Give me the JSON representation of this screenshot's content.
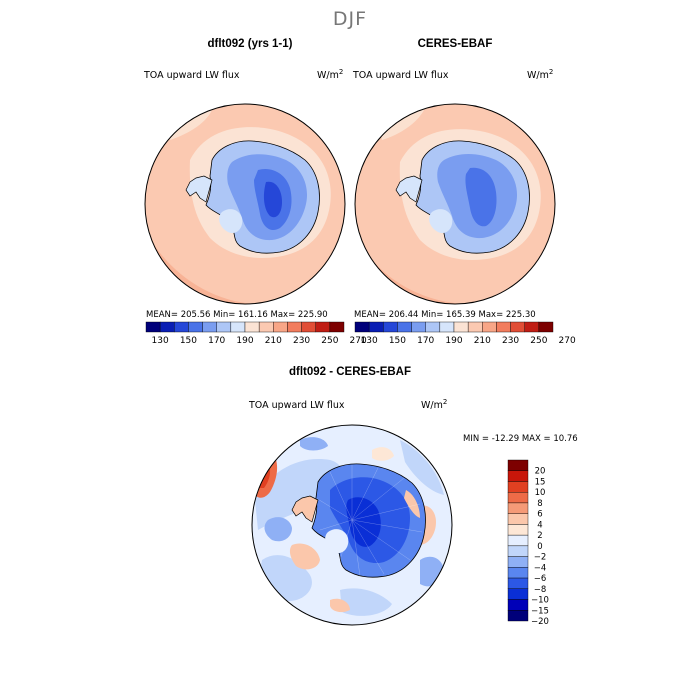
{
  "figure": {
    "season": "DJF"
  },
  "colors": {
    "abs_levels": [
      "#00007a",
      "#0a1eb4",
      "#2547d8",
      "#4a73e8",
      "#7a9df0",
      "#adc6f6",
      "#d6e5fb",
      "#fbe3d4",
      "#fbc9b1",
      "#f8a687",
      "#f27d5e",
      "#e14e36",
      "#c01d14",
      "#7d0000"
    ],
    "diff_levels": [
      "#00007a",
      "#0000b8",
      "#0a2fd6",
      "#2c58e6",
      "#5a86ef",
      "#8fb0f5",
      "#c1d6fa",
      "#e6efff",
      "#fde7d6",
      "#fbc7ab",
      "#f59a77",
      "#ee6b47",
      "#e14021",
      "#c8160a",
      "#7d0000"
    ]
  },
  "charts": [
    {
      "title": "dflt092 (yrs 1-1)",
      "variable": "TOA upward LW flux",
      "units": "W/m",
      "units_exp": "2",
      "stats": "MEAN= 205.56   Min= 161.16   Max= 225.90"
    },
    {
      "title": "CERES-EBAF",
      "variable": "TOA upward LW flux",
      "units": "W/m",
      "units_exp": "2",
      "stats": "MEAN= 206.44   Min= 165.39   Max= 225.30"
    },
    {
      "title": "dflt092 - CERES-EBAF",
      "variable": "TOA upward LW flux",
      "units": "W/m",
      "units_exp": "2",
      "stats": "MIN = -12.29 MAX =  10.76"
    }
  ],
  "chart_data": [
    {
      "type": "heatmap",
      "title": "dflt092 (yrs 1-1)",
      "projection": "south polar stereographic",
      "variable": "TOA upward LW flux",
      "units": "W/m2",
      "mean": 205.56,
      "min": 161.16,
      "max": 225.9,
      "colorbar": {
        "orientation": "horizontal",
        "levels": [
          130,
          140,
          150,
          160,
          170,
          180,
          190,
          200,
          210,
          220,
          230,
          240,
          250,
          260,
          270
        ],
        "tick_labels": [
          "130",
          "150",
          "170",
          "190",
          "210",
          "230",
          "250",
          "270"
        ]
      }
    },
    {
      "type": "heatmap",
      "title": "CERES-EBAF",
      "projection": "south polar stereographic",
      "variable": "TOA upward LW flux",
      "units": "W/m2",
      "mean": 206.44,
      "min": 165.39,
      "max": 225.3,
      "colorbar": {
        "orientation": "horizontal",
        "levels": [
          130,
          140,
          150,
          160,
          170,
          180,
          190,
          200,
          210,
          220,
          230,
          240,
          250,
          260,
          270
        ],
        "tick_labels": [
          "130",
          "150",
          "170",
          "190",
          "210",
          "230",
          "250",
          "270"
        ]
      }
    },
    {
      "type": "heatmap",
      "title": "dflt092 - CERES-EBAF",
      "projection": "south polar stereographic",
      "variable": "TOA upward LW flux",
      "units": "W/m2",
      "min": -12.29,
      "max": 10.76,
      "colorbar": {
        "orientation": "vertical",
        "tick_labels": [
          "20",
          "15",
          "10",
          "8",
          "6",
          "4",
          "2",
          "0",
          "−2",
          "−4",
          "−6",
          "−8",
          "−10",
          "−15",
          "−20"
        ]
      }
    }
  ]
}
